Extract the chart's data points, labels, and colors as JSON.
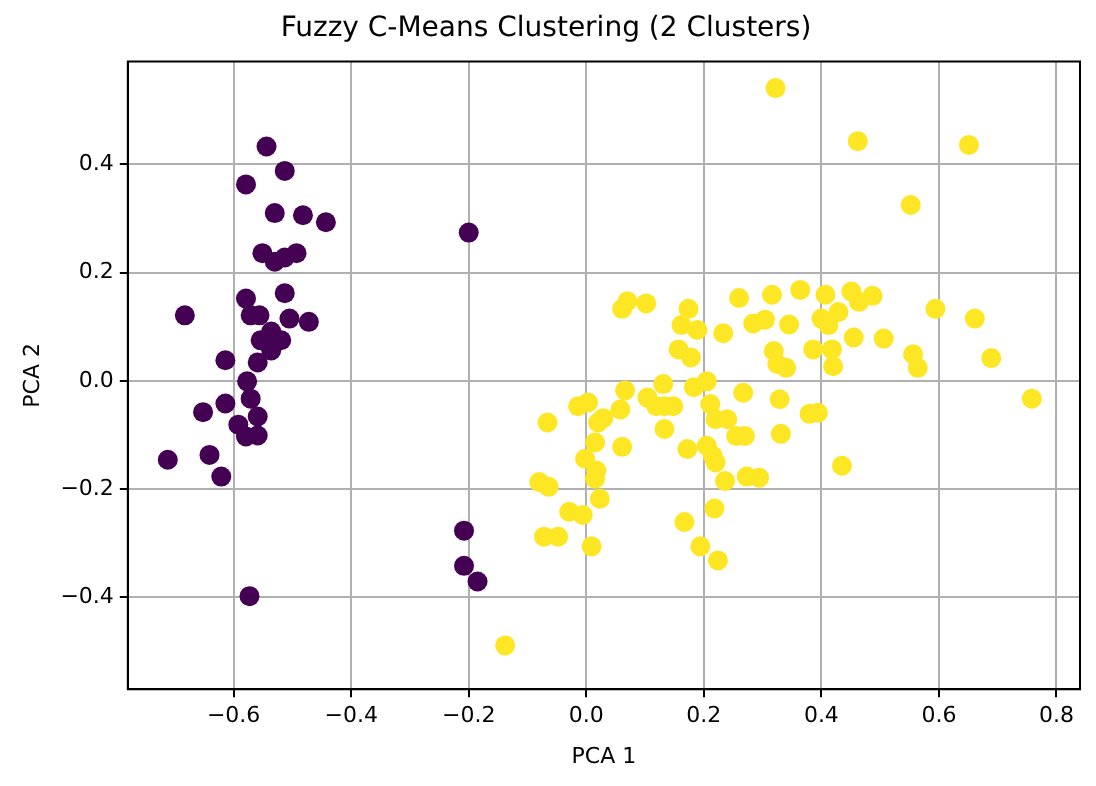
{
  "chart_data": {
    "type": "scatter",
    "title": "Fuzzy C-Means Clustering (2 Clusters)",
    "xlabel": "PCA 1",
    "ylabel": "PCA 2",
    "xlim": [
      -0.78,
      0.84
    ],
    "ylim": [
      -0.57,
      0.59
    ],
    "xticks": [
      {
        "value": -0.6,
        "label": "−0.6"
      },
      {
        "value": -0.4,
        "label": "−0.4"
      },
      {
        "value": -0.2,
        "label": "−0.2"
      },
      {
        "value": 0,
        "label": "0.0"
      },
      {
        "value": 0.2,
        "label": "0.2"
      },
      {
        "value": 0.4,
        "label": "0.4"
      },
      {
        "value": 0.6,
        "label": "0.6"
      },
      {
        "value": 0.8,
        "label": "0.8"
      }
    ],
    "yticks": [
      {
        "value": -0.4,
        "label": "−0.4"
      },
      {
        "value": -0.2,
        "label": "−0.2"
      },
      {
        "value": 0,
        "label": "0.0"
      },
      {
        "value": 0.2,
        "label": "0.2"
      },
      {
        "value": 0.4,
        "label": "0.4"
      }
    ],
    "grid": true,
    "legend": false,
    "marker": "circle",
    "series": [
      {
        "color": "#440154",
        "x": [
          -0.544,
          -0.513,
          -0.579,
          -0.53,
          -0.482,
          -0.443,
          -0.2,
          -0.551,
          -0.53,
          -0.513,
          -0.493,
          -0.579,
          -0.513,
          -0.683,
          -0.571,
          -0.556,
          -0.505,
          -0.472,
          -0.536,
          -0.554,
          -0.519,
          -0.536,
          -0.559,
          -0.614,
          -0.577,
          -0.571,
          -0.614,
          -0.559,
          -0.652,
          -0.592,
          -0.579,
          -0.559,
          -0.712,
          -0.641,
          -0.621,
          -0.573,
          -0.208,
          -0.208,
          -0.185
        ],
        "values": [
          0.433,
          0.388,
          0.363,
          0.31,
          0.306,
          0.293,
          0.274,
          0.236,
          0.22,
          0.228,
          0.236,
          0.152,
          0.162,
          0.121,
          0.121,
          0.121,
          0.115,
          0.109,
          0.091,
          0.075,
          0.075,
          0.056,
          0.034,
          0.038,
          -0.001,
          -0.033,
          -0.042,
          -0.066,
          -0.058,
          -0.081,
          -0.103,
          -0.101,
          -0.146,
          -0.137,
          -0.177,
          -0.398,
          -0.277,
          -0.342,
          -0.371
        ]
      },
      {
        "color": "#fde725",
        "x": [
          0.322,
          0.462,
          0.651,
          0.552,
          0.07,
          0.102,
          0.26,
          0.316,
          0.364,
          0.407,
          0.451,
          0.487,
          0.061,
          0.174,
          0.464,
          0.429,
          0.594,
          0.661,
          0.162,
          0.189,
          0.233,
          0.284,
          0.304,
          0.345,
          0.4,
          0.412,
          0.455,
          0.506,
          0.157,
          0.178,
          0.319,
          0.325,
          0.34,
          0.386,
          0.418,
          0.42,
          0.556,
          0.564,
          0.689,
          0.758,
          0.131,
          0.183,
          0.205,
          0.104,
          0.066,
          0.133,
          0.148,
          0.119,
          0.211,
          0.267,
          0.329,
          0.003,
          -0.014,
          0.058,
          0.029,
          0.02,
          -0.066,
          0.133,
          0.22,
          0.24,
          0.255,
          0.27,
          0.331,
          0.38,
          0.394,
          0.015,
          0.061,
          0.172,
          0.205,
          0.215,
          0.22,
          -0.002,
          0.017,
          0.435,
          0.015,
          -0.08,
          -0.064,
          0.236,
          0.273,
          0.294,
          0.023,
          -0.029,
          -0.006,
          0.167,
          0.218,
          -0.072,
          -0.048,
          0.009,
          0.194,
          0.224,
          -0.138
        ],
        "values": [
          0.541,
          0.443,
          0.436,
          0.325,
          0.147,
          0.143,
          0.153,
          0.159,
          0.168,
          0.159,
          0.165,
          0.157,
          0.133,
          0.133,
          0.146,
          0.127,
          0.133,
          0.115,
          0.103,
          0.094,
          0.088,
          0.106,
          0.113,
          0.104,
          0.115,
          0.103,
          0.08,
          0.078,
          0.058,
          0.043,
          0.055,
          0.031,
          0.024,
          0.058,
          0.058,
          0.027,
          0.049,
          0.024,
          0.042,
          -0.033,
          -0.006,
          -0.012,
          -0.001,
          -0.031,
          -0.018,
          -0.047,
          -0.047,
          -0.047,
          -0.043,
          -0.022,
          -0.034,
          -0.04,
          -0.047,
          -0.053,
          -0.069,
          -0.077,
          -0.077,
          -0.089,
          -0.071,
          -0.071,
          -0.102,
          -0.102,
          -0.098,
          -0.061,
          -0.059,
          -0.114,
          -0.122,
          -0.126,
          -0.12,
          -0.138,
          -0.151,
          -0.144,
          -0.166,
          -0.157,
          -0.181,
          -0.187,
          -0.196,
          -0.185,
          -0.177,
          -0.179,
          -0.218,
          -0.242,
          -0.248,
          -0.261,
          -0.236,
          -0.288,
          -0.288,
          -0.306,
          -0.306,
          -0.332,
          -0.489
        ]
      }
    ]
  }
}
